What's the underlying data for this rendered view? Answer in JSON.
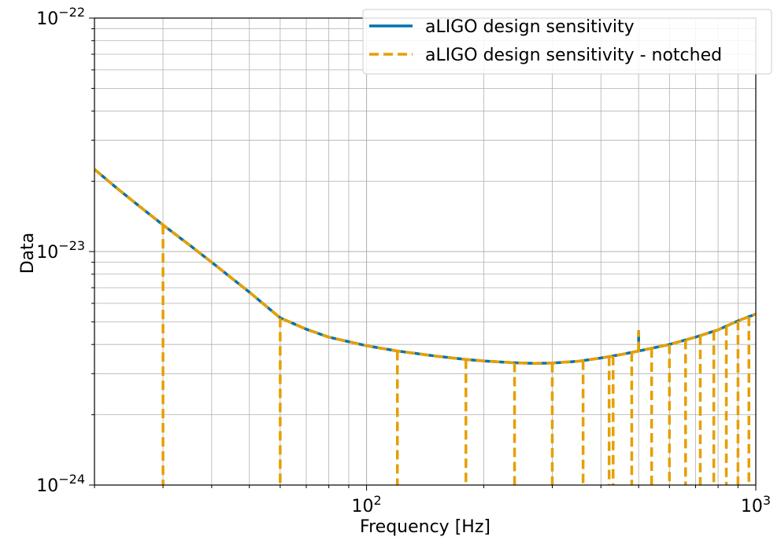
{
  "chart_data": {
    "type": "line",
    "xlabel": "Frequency [Hz]",
    "ylabel": "Data",
    "xscale": "log",
    "yscale": "log",
    "xlim": [
      20,
      1000
    ],
    "ylim": [
      1e-24,
      1e-22
    ],
    "grid": "both major and minor",
    "legend_position": "top-right",
    "x_ticks": [
      {
        "value": 100,
        "base": "10",
        "exp": "2"
      },
      {
        "value": 1000,
        "base": "10",
        "exp": "3"
      }
    ],
    "y_ticks": [
      {
        "value": 1e-24,
        "base": "10",
        "exp": "−24"
      },
      {
        "value": 1e-23,
        "base": "10",
        "exp": "−23"
      },
      {
        "value": 1e-22,
        "base": "10",
        "exp": "−22"
      }
    ],
    "colors": {
      "design": "#0072b2",
      "notched": "#e69f00"
    },
    "series": [
      {
        "name": "aLIGO design sensitivity",
        "style": "solid",
        "x": [
          20,
          23,
          26,
          30,
          35,
          40,
          45,
          50,
          60,
          70,
          80,
          100,
          120,
          150,
          180,
          200,
          240,
          270,
          300,
          350,
          400,
          450,
          500,
          600,
          700,
          800,
          900,
          1000
        ],
        "y": [
          2.25e-23,
          1.85e-23,
          1.57e-23,
          1.3e-23,
          1.07e-23,
          9e-24,
          7.7e-24,
          6.7e-24,
          5.2e-24,
          4.65e-24,
          4.3e-24,
          3.95e-24,
          3.75e-24,
          3.57e-24,
          3.45e-24,
          3.4e-24,
          3.34e-24,
          3.32e-24,
          3.33e-24,
          3.39e-24,
          3.5e-24,
          3.62e-24,
          3.75e-24,
          4e-24,
          4.3e-24,
          4.62e-24,
          5.05e-24,
          5.4e-24
        ],
        "spike": {
          "x": 500,
          "y": 4.6e-24
        }
      },
      {
        "name": "aLIGO design sensitivity - notched",
        "style": "dashed",
        "notches_x": [
          30,
          60,
          120,
          180,
          240,
          300,
          360,
          420,
          430,
          480,
          540,
          600,
          660,
          720,
          780,
          840,
          900,
          960
        ]
      }
    ]
  }
}
